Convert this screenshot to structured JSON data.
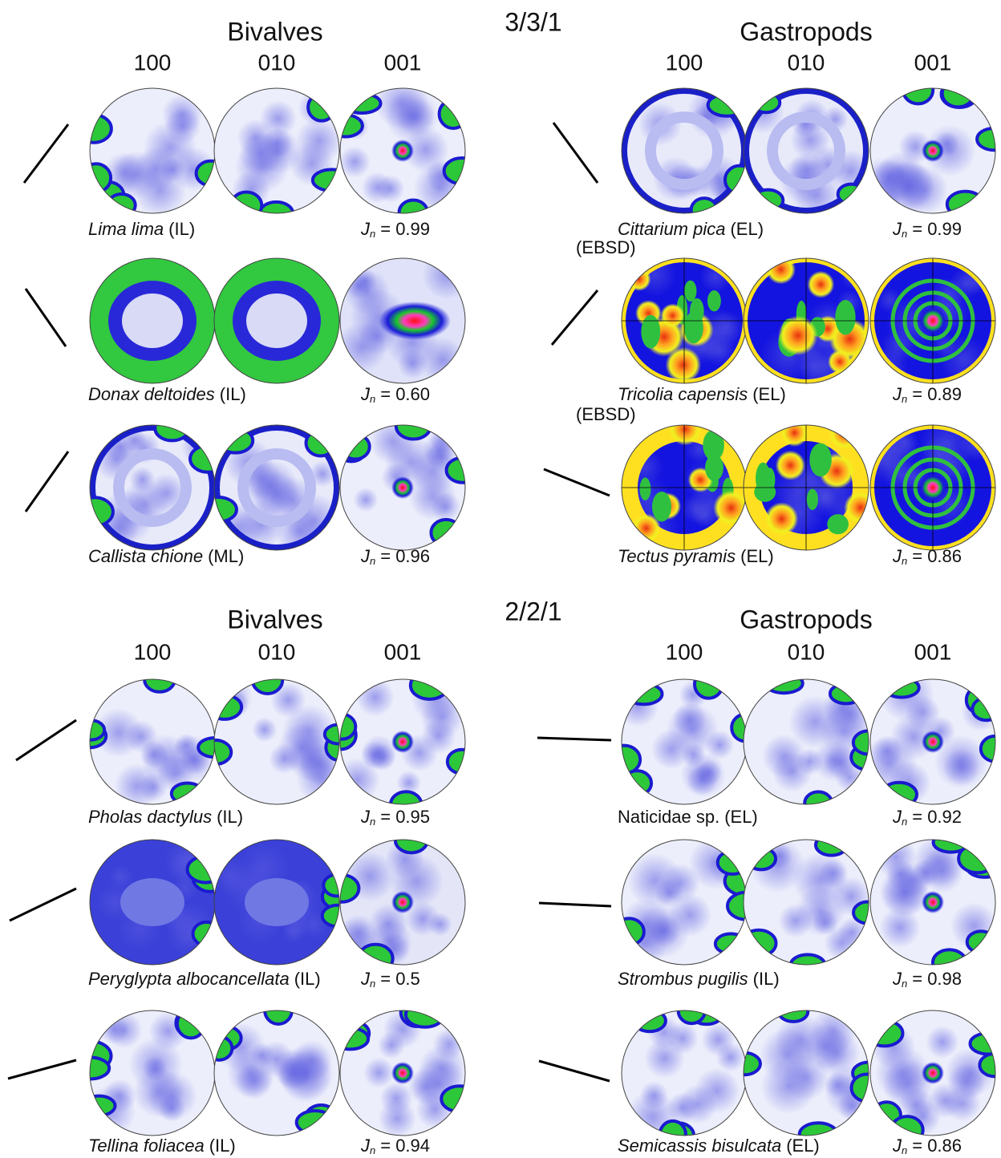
{
  "sections": [
    {
      "title": "3/3/1",
      "groups": [
        {
          "title": "Bivalves",
          "columns": [
            "100",
            "010",
            "001"
          ],
          "rows": [
            {
              "species": "Lima lima",
              "layer": "(IL)",
              "italic": true,
              "index": {
                "symbol": "J",
                "sub": "n",
                "text": "= 0.99"
              }
            },
            {
              "species": "Donax deltoides",
              "layer": "(IL)",
              "italic": true,
              "index": {
                "symbol": "J",
                "sub": "n",
                "text": "= 0.60"
              }
            },
            {
              "species": "Callista chione",
              "layer": "(ML)",
              "italic": true,
              "index": {
                "symbol": "J",
                "sub": "n",
                "text": "= 0.96"
              }
            }
          ]
        },
        {
          "title": "Gastropods",
          "columns": [
            "100",
            "010",
            "001"
          ],
          "rows": [
            {
              "species": "Cittarium pica",
              "layer": "(EL)",
              "italic": true,
              "index": {
                "symbol": "J",
                "sub": "n",
                "text": "= 0.99"
              }
            },
            {
              "method": "(EBSD)",
              "species": "Tricolia capensis",
              "layer": "(EL)",
              "italic": true,
              "index": {
                "symbol": "J",
                "sub": "n",
                "text": "= 0.89"
              }
            },
            {
              "method": "(EBSD)",
              "species": "Tectus pyramis",
              "layer": "(EL)",
              "italic": true,
              "index": {
                "symbol": "J",
                "sub": "n",
                "text": "= 0.86"
              }
            }
          ]
        }
      ]
    },
    {
      "title": "2/2/1",
      "groups": [
        {
          "title": "Bivalves",
          "columns": [
            "100",
            "010",
            "001"
          ],
          "rows": [
            {
              "species": "Pholas dactylus",
              "layer": "(IL)",
              "italic": true,
              "index": {
                "symbol": "J",
                "sub": "n",
                "text": "= 0.95"
              }
            },
            {
              "species": "Peryglypta albocancellata",
              "layer": "(IL)",
              "italic": true,
              "index": {
                "symbol": "J",
                "sub": "n",
                "text": "= 0.5"
              }
            },
            {
              "species": "Tellina foliacea",
              "layer": "(IL)",
              "italic": true,
              "index": {
                "symbol": "J",
                "sub": "n",
                "text": "= 0.94"
              }
            }
          ]
        },
        {
          "title": "Gastropods",
          "columns": [
            "100",
            "010",
            "001"
          ],
          "rows": [
            {
              "species": "Naticidae sp.",
              "layer": "(EL)",
              "italic": false,
              "index": {
                "symbol": "J",
                "sub": "n",
                "text": "= 0.92"
              }
            },
            {
              "species": "Strombus pugilis",
              "layer": "(IL)",
              "italic": true,
              "index": {
                "symbol": "J",
                "sub": "n",
                "text": "= 0.98"
              }
            },
            {
              "species": "Semicassis bisulcata",
              "layer": "(EL)",
              "italic": true,
              "index": {
                "symbol": "J",
                "sub": "n",
                "text": "= 0.86"
              }
            }
          ]
        }
      ]
    }
  ]
}
